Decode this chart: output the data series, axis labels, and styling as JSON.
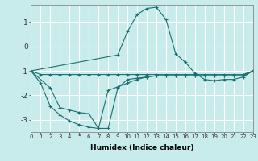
{
  "xlabel": "Humidex (Indice chaleur)",
  "background_color": "#c8ecec",
  "grid_color": "#ffffff",
  "line_color": "#1a7070",
  "x_min": 0,
  "x_max": 23,
  "y_min": -3.5,
  "y_max": 1.7,
  "series": [
    {
      "x": [
        0,
        1,
        2,
        3,
        4,
        5,
        6,
        7,
        8,
        9,
        10,
        11,
        12,
        13,
        14,
        15,
        16,
        17,
        18,
        19,
        20,
        21,
        22,
        23
      ],
      "y": [
        -1.0,
        -1.15,
        -1.15,
        -1.15,
        -1.15,
        -1.15,
        -1.15,
        -1.15,
        -1.15,
        -1.15,
        -1.15,
        -1.15,
        -1.15,
        -1.15,
        -1.15,
        -1.15,
        -1.15,
        -1.15,
        -1.15,
        -1.15,
        -1.15,
        -1.15,
        -1.15,
        -1.0
      ]
    },
    {
      "x": [
        0,
        1,
        2,
        3,
        4,
        5,
        6,
        7,
        8,
        9,
        10,
        11,
        12,
        13,
        14,
        15,
        16,
        17,
        18,
        19,
        20,
        21,
        22,
        23
      ],
      "y": [
        -1.0,
        -1.5,
        -2.45,
        -2.8,
        -3.05,
        -3.2,
        -3.3,
        -3.35,
        -3.35,
        -1.7,
        -1.35,
        -1.3,
        -1.25,
        -1.2,
        -1.2,
        -1.2,
        -1.2,
        -1.2,
        -1.2,
        -1.2,
        -1.2,
        -1.2,
        -1.2,
        -1.0
      ]
    },
    {
      "x": [
        0,
        2,
        3,
        4,
        5,
        6,
        7,
        8,
        9,
        10,
        11,
        12,
        13,
        14,
        15,
        16,
        17,
        18,
        19,
        20,
        21,
        22,
        23
      ],
      "y": [
        -1.0,
        -1.7,
        -2.5,
        -2.6,
        -2.7,
        -2.75,
        -3.35,
        -1.8,
        -1.65,
        -1.5,
        -1.35,
        -1.25,
        -1.2,
        -1.2,
        -1.2,
        -1.2,
        -1.2,
        -1.2,
        -1.2,
        -1.2,
        -1.2,
        -1.2,
        -1.0
      ]
    },
    {
      "x": [
        0,
        9,
        10,
        11,
        12,
        13,
        14,
        15,
        16,
        17,
        18,
        19,
        20,
        21,
        22,
        23
      ],
      "y": [
        -1.0,
        -0.35,
        0.6,
        1.3,
        1.55,
        1.6,
        1.1,
        -0.3,
        -0.65,
        -1.1,
        -1.35,
        -1.4,
        -1.35,
        -1.35,
        -1.25,
        -1.0
      ]
    }
  ],
  "yticks": [
    -3,
    -2,
    -1,
    0,
    1
  ],
  "xticks": [
    0,
    1,
    2,
    3,
    4,
    5,
    6,
    7,
    8,
    9,
    10,
    11,
    12,
    13,
    14,
    15,
    16,
    17,
    18,
    19,
    20,
    21,
    22,
    23
  ],
  "xlabel_fontsize": 6.5,
  "xlabel_fontweight": "bold",
  "ytick_fontsize": 6.5,
  "xtick_fontsize": 5.0
}
